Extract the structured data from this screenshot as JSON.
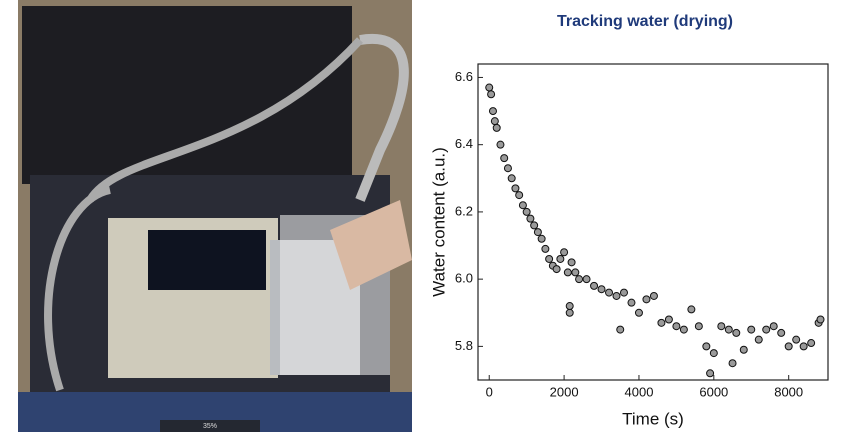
{
  "toolbar": {
    "zoom": "35%"
  },
  "chart_data": {
    "type": "scatter",
    "title": "Tracking water (drying)",
    "xlabel": "Time (s)",
    "ylabel": "Water content (a.u.)",
    "x": [
      0,
      50,
      100,
      150,
      200,
      300,
      400,
      500,
      600,
      700,
      800,
      900,
      1000,
      1100,
      1200,
      1300,
      1400,
      1500,
      1600,
      1700,
      1800,
      1900,
      2000,
      2100,
      2150,
      2150,
      2200,
      2300,
      2400,
      2600,
      2800,
      3000,
      3200,
      3400,
      3500,
      3600,
      3800,
      4000,
      4200,
      4400,
      4600,
      4800,
      5000,
      5200,
      5400,
      5600,
      5800,
      5900,
      6000,
      6200,
      6400,
      6500,
      6600,
      6800,
      7000,
      7200,
      7400,
      7600,
      7800,
      8000,
      8200,
      8400,
      8600,
      8800,
      8850
    ],
    "values": [
      6.57,
      6.55,
      6.5,
      6.47,
      6.45,
      6.4,
      6.36,
      6.33,
      6.3,
      6.27,
      6.25,
      6.22,
      6.2,
      6.18,
      6.16,
      6.14,
      6.12,
      6.09,
      6.06,
      6.04,
      6.03,
      6.06,
      6.08,
      6.02,
      5.9,
      5.92,
      6.05,
      6.02,
      6.0,
      6.0,
      5.98,
      5.97,
      5.96,
      5.95,
      5.85,
      5.96,
      5.93,
      5.9,
      5.94,
      5.95,
      5.87,
      5.88,
      5.86,
      5.85,
      5.91,
      5.86,
      5.8,
      5.72,
      5.78,
      5.86,
      5.85,
      5.75,
      5.84,
      5.79,
      5.85,
      5.82,
      5.85,
      5.86,
      5.84,
      5.8,
      5.82,
      5.8,
      5.81,
      5.87,
      5.88
    ],
    "color": "#9a9a9a",
    "xlim": [
      -300,
      9050
    ],
    "ylim": [
      5.7,
      6.64
    ],
    "xticks": [
      0,
      2000,
      4000,
      6000,
      8000
    ],
    "yticks": [
      5.8,
      {
        "value": 6.0,
        "label": "6.0"
      },
      6.2,
      6.4,
      6.6
    ]
  }
}
